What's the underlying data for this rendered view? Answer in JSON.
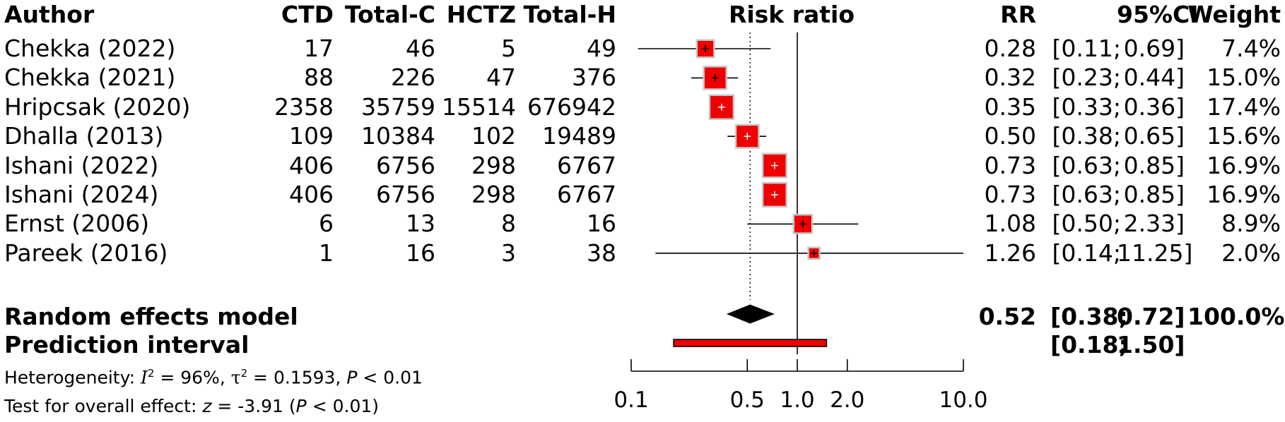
{
  "headers": {
    "author": "Author",
    "ctd": "CTD",
    "total_c": "Total-C",
    "hctz": "HCTZ",
    "total_h": "Total-H",
    "risk_ratio": "Risk ratio",
    "rr": "RR",
    "ci": "95%CI",
    "weight": "Weight"
  },
  "summary": {
    "label": "Random effects model",
    "rr": "0.52",
    "ci_low": "[0.38;",
    "ci_high": "0.72]",
    "weight": "100.0%"
  },
  "prediction": {
    "label": "Prediction interval",
    "ci_low": "[0.18;",
    "ci_high": "1.50]"
  },
  "heterogeneity": {
    "prefix": "Heterogeneity: ",
    "i2_symbol": "I",
    "i2_sup": "2",
    "i2_value": " = 96%, ",
    "tau_symbol": "τ",
    "tau_sup": "2",
    "tau_value": " = 0.1593, ",
    "p_symbol": "P",
    "p_value": " < 0.01"
  },
  "overall": {
    "prefix": "Test for overall effect: ",
    "z_symbol": "z",
    "z_value": " = -3.91 (",
    "p_symbol": "P",
    "p_value": " < 0.01)"
  },
  "chart_data": {
    "type": "forest",
    "title": "Risk ratio",
    "x_scale": "log",
    "x_ticks": [
      0.1,
      0.5,
      1.0,
      2.0,
      10.0
    ],
    "x_tick_labels": [
      "0.1",
      "0.5",
      "1.0",
      "2.0",
      "10.0"
    ],
    "null_line": 1.0,
    "summary_line": 0.52,
    "studies": [
      {
        "author": "Chekka (2022)",
        "ctd": "17",
        "total_c": "46",
        "hctz": "5",
        "total_h": "49",
        "rr": 0.28,
        "lo": 0.11,
        "hi": 0.69,
        "rr_text": "0.28",
        "ci_low": "[0.11;",
        "ci_high": "0.69]",
        "weight": 7.4,
        "weight_text": "7.4%"
      },
      {
        "author": "Chekka (2021)",
        "ctd": "88",
        "total_c": "226",
        "hctz": "47",
        "total_h": "376",
        "rr": 0.32,
        "lo": 0.23,
        "hi": 0.44,
        "rr_text": "0.32",
        "ci_low": "[0.23;",
        "ci_high": "0.44]",
        "weight": 15.0,
        "weight_text": "15.0%"
      },
      {
        "author": "Hripcsak (2020)",
        "ctd": "2358",
        "total_c": "35759",
        "hctz": "15514",
        "total_h": "676942",
        "rr": 0.35,
        "lo": 0.33,
        "hi": 0.36,
        "rr_text": "0.35",
        "ci_low": "[0.33;",
        "ci_high": "0.36]",
        "weight": 17.4,
        "weight_text": "17.4%"
      },
      {
        "author": "Dhalla (2013)",
        "ctd": "109",
        "total_c": "10384",
        "hctz": "102",
        "total_h": "19489",
        "rr": 0.5,
        "lo": 0.38,
        "hi": 0.65,
        "rr_text": "0.50",
        "ci_low": "[0.38;",
        "ci_high": "0.65]",
        "weight": 15.6,
        "weight_text": "15.6%"
      },
      {
        "author": "Ishani (2022)",
        "ctd": "406",
        "total_c": "6756",
        "hctz": "298",
        "total_h": "6767",
        "rr": 0.73,
        "lo": 0.63,
        "hi": 0.85,
        "rr_text": "0.73",
        "ci_low": "[0.63;",
        "ci_high": "0.85]",
        "weight": 16.9,
        "weight_text": "16.9%"
      },
      {
        "author": "Ishani (2024)",
        "ctd": "406",
        "total_c": "6756",
        "hctz": "298",
        "total_h": "6767",
        "rr": 0.73,
        "lo": 0.63,
        "hi": 0.85,
        "rr_text": "0.73",
        "ci_low": "[0.63;",
        "ci_high": "0.85]",
        "weight": 16.9,
        "weight_text": "16.9%"
      },
      {
        "author": "Ernst (2006)",
        "ctd": "6",
        "total_c": "13",
        "hctz": "8",
        "total_h": "16",
        "rr": 1.08,
        "lo": 0.5,
        "hi": 2.33,
        "rr_text": "1.08",
        "ci_low": "[0.50;",
        "ci_high": "2.33]",
        "weight": 8.9,
        "weight_text": "8.9%"
      },
      {
        "author": "Pareek (2016)",
        "ctd": "1",
        "total_c": "16",
        "hctz": "3",
        "total_h": "38",
        "rr": 1.26,
        "lo": 0.14,
        "hi": 11.25,
        "rr_text": "1.26",
        "ci_low": "[0.14;",
        "ci_high": "11.25]",
        "weight": 2.0,
        "weight_text": "2.0%"
      }
    ],
    "summary": {
      "rr": 0.52,
      "lo": 0.38,
      "hi": 0.72
    },
    "prediction": {
      "lo": 0.18,
      "hi": 1.5
    },
    "colors": {
      "box": "#ee0000",
      "box_border": "#c8c8c8",
      "diamond": "#000000",
      "prediction_fill": "#ee0000"
    }
  }
}
